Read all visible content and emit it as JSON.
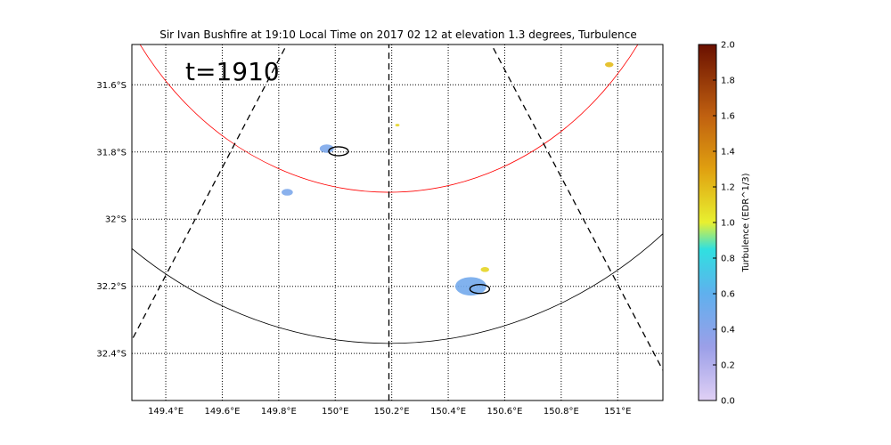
{
  "chart_data": {
    "type": "radar-map",
    "title": "Sir Ivan Bushfire at 19:10 Local Time on 2017 02 12 at elevation 1.3 degrees, Turbulence",
    "annotation": "t=1910",
    "x_range": [
      149.28,
      151.16
    ],
    "y_range": [
      -32.54,
      -31.48
    ],
    "lon_ticks": [
      149.4,
      149.6,
      149.8,
      150.0,
      150.2,
      150.4,
      150.6,
      150.8,
      151.0
    ],
    "lon_tick_labels": [
      "149.4°E",
      "149.6°E",
      "149.8°E",
      "150°E",
      "150.2°E",
      "150.4°E",
      "150.6°E",
      "150.8°E",
      "151°E"
    ],
    "lat_ticks": [
      -31.6,
      -31.8,
      -32.0,
      -32.2,
      -32.4
    ],
    "lat_tick_labels": [
      "31.6°S",
      "31.8°S",
      "32°S",
      "32.2°S",
      "32.4°S"
    ],
    "grid": true,
    "radar_site": {
      "lon": 150.19,
      "lat": -30.9
    },
    "range_rings": [
      {
        "radius_deg": 1.02,
        "color": "#ff0000"
      },
      {
        "radius_deg": 1.47,
        "color": "#000000"
      }
    ],
    "dashed_beams": [
      {
        "end": {
          "lon": 149.28,
          "lat": -32.36
        }
      },
      {
        "end": {
          "lon": 150.19,
          "lat": -32.54
        }
      },
      {
        "end": {
          "lon": 151.16,
          "lat": -32.45
        }
      }
    ],
    "colorbar": {
      "label": "Turbulence (EDR^1/3)",
      "range": [
        0.0,
        2.0
      ],
      "ticks": [
        0.0,
        0.2,
        0.4,
        0.6,
        0.8,
        1.0,
        1.2,
        1.4,
        1.6,
        1.8,
        2.0
      ],
      "tick_labels": [
        "0.0",
        "0.2",
        "0.4",
        "0.6",
        "0.8",
        "1.0",
        "1.2",
        "1.4",
        "1.6",
        "1.8",
        "2.0"
      ],
      "stops": [
        {
          "v": 0.0,
          "color": "#e0d0f5"
        },
        {
          "v": 0.3,
          "color": "#9b9fe8"
        },
        {
          "v": 0.6,
          "color": "#5fb0ee"
        },
        {
          "v": 0.85,
          "color": "#30e0e0"
        },
        {
          "v": 1.0,
          "color": "#e8f030"
        },
        {
          "v": 1.3,
          "color": "#e0a010"
        },
        {
          "v": 1.6,
          "color": "#c06010"
        },
        {
          "v": 2.0,
          "color": "#6a1000"
        }
      ]
    },
    "echoes": [
      {
        "lon": 149.97,
        "lat": -31.79,
        "value": 0.45,
        "size": 0.05
      },
      {
        "lon": 149.83,
        "lat": -31.92,
        "value": 0.45,
        "size": 0.04
      },
      {
        "lon": 150.22,
        "lat": -31.72,
        "value": 1.1,
        "size": 0.015
      },
      {
        "lon": 150.97,
        "lat": -31.54,
        "value": 1.2,
        "size": 0.03
      },
      {
        "lon": 150.48,
        "lat": -32.2,
        "value": 0.5,
        "size": 0.11
      },
      {
        "lon": 150.53,
        "lat": -32.15,
        "value": 1.1,
        "size": 0.03
      }
    ],
    "contours": [
      {
        "lon": 149.98,
        "lat": -31.79
      },
      {
        "lon": 150.48,
        "lat": -32.2
      }
    ]
  }
}
